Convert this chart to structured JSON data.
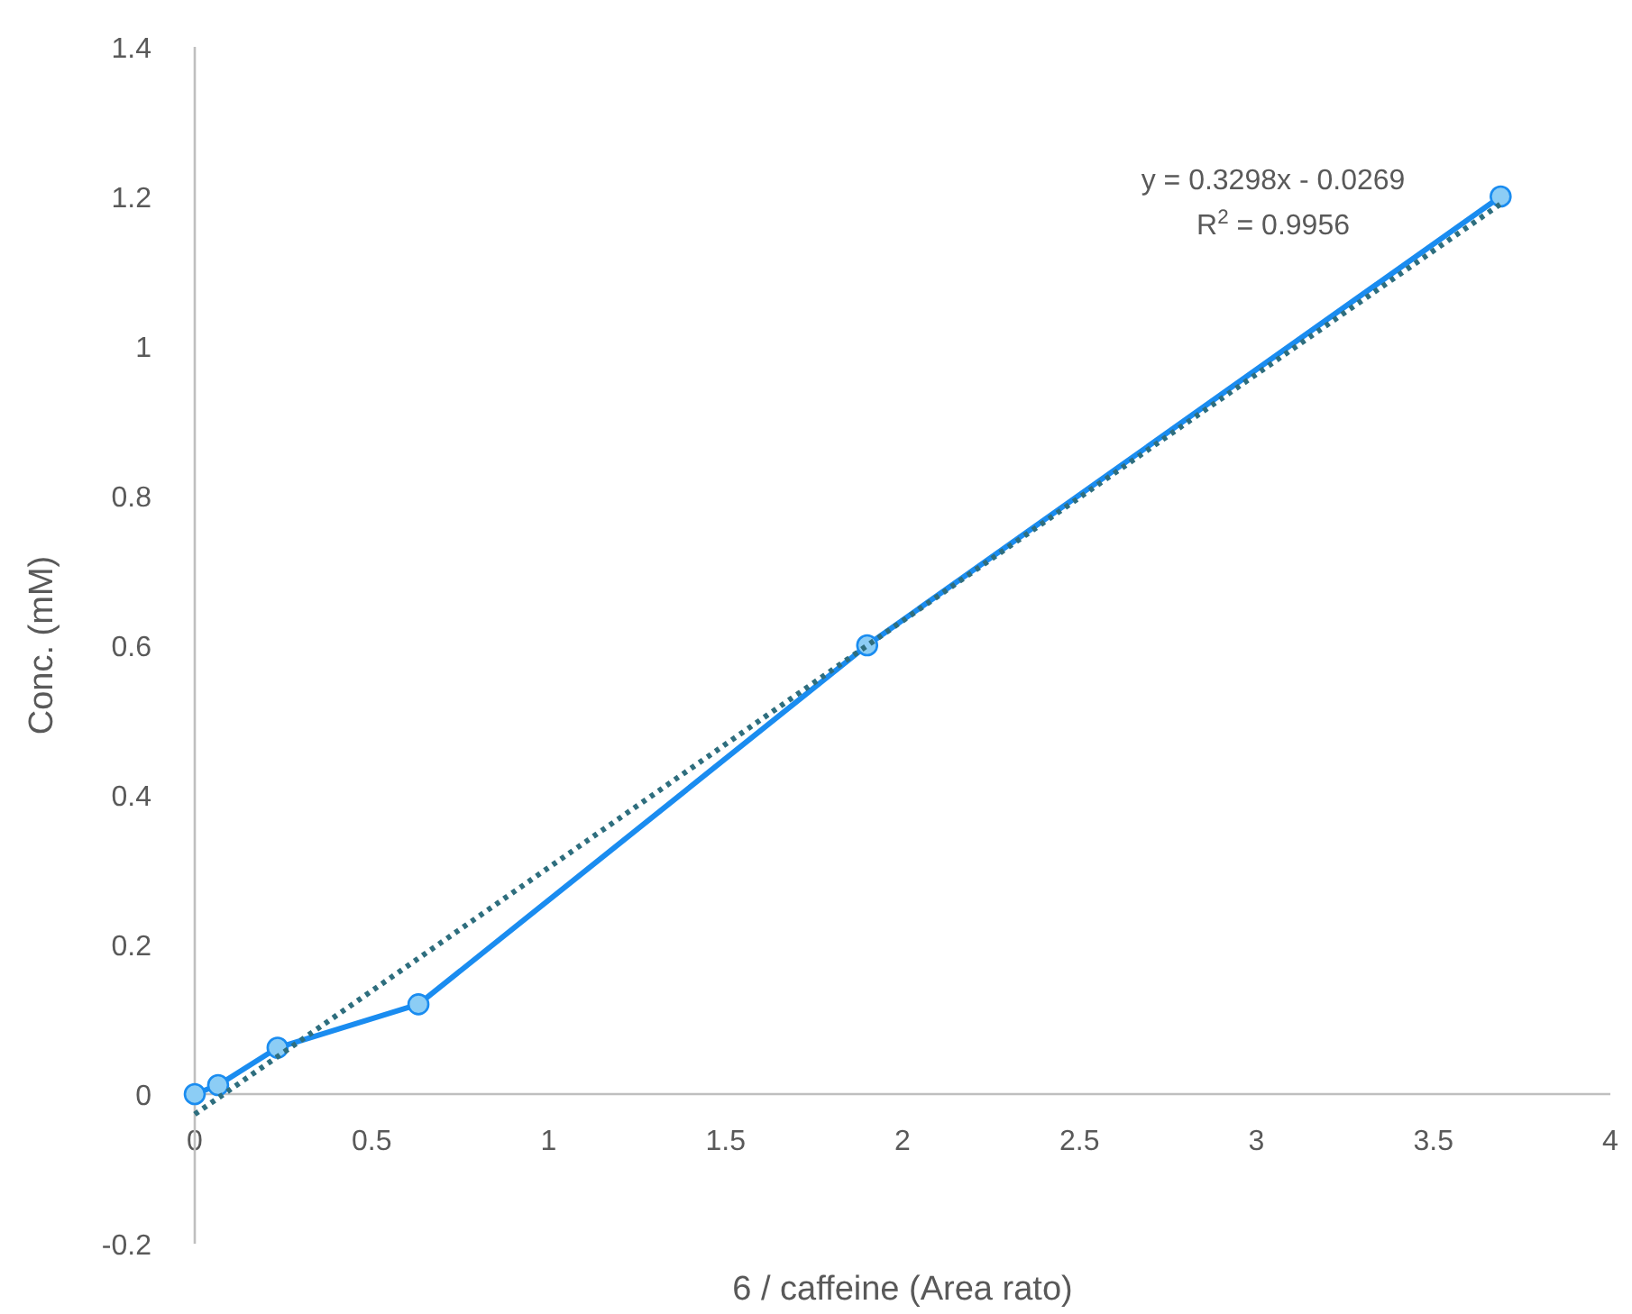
{
  "chart_data": {
    "type": "line",
    "xlabel": "6 / caffeine (Area rato)",
    "ylabel": "Conc. (mM)",
    "xlim": [
      0,
      4
    ],
    "xticks": [
      0,
      0.5,
      1,
      1.5,
      2,
      2.5,
      3,
      3.5,
      4
    ],
    "ylim": [
      -0.2,
      1.4
    ],
    "yticks": [
      -0.2,
      0,
      0.2,
      0.4,
      0.6,
      0.8,
      1,
      1.2,
      1.4
    ],
    "grid": false,
    "series": [
      {
        "color": "#1a8cf0",
        "marker": "circle",
        "line_style": "solid",
        "x": [
          0,
          0.066,
          0.234,
          0.632,
          1.9,
          3.69
        ],
        "values": [
          0,
          0.012,
          0.062,
          0.12,
          0.6,
          1.2
        ]
      },
      {
        "type": "line",
        "color": "#2e6e7e",
        "marker": "none",
        "line_style": "dotted",
        "x": [
          0,
          3.69
        ],
        "values": [
          -0.027,
          1.19
        ]
      }
    ],
    "annotations": [
      "y = 0.3298x - 0.0269",
      "R$^{2}$ = 0.9956"
    ]
  }
}
